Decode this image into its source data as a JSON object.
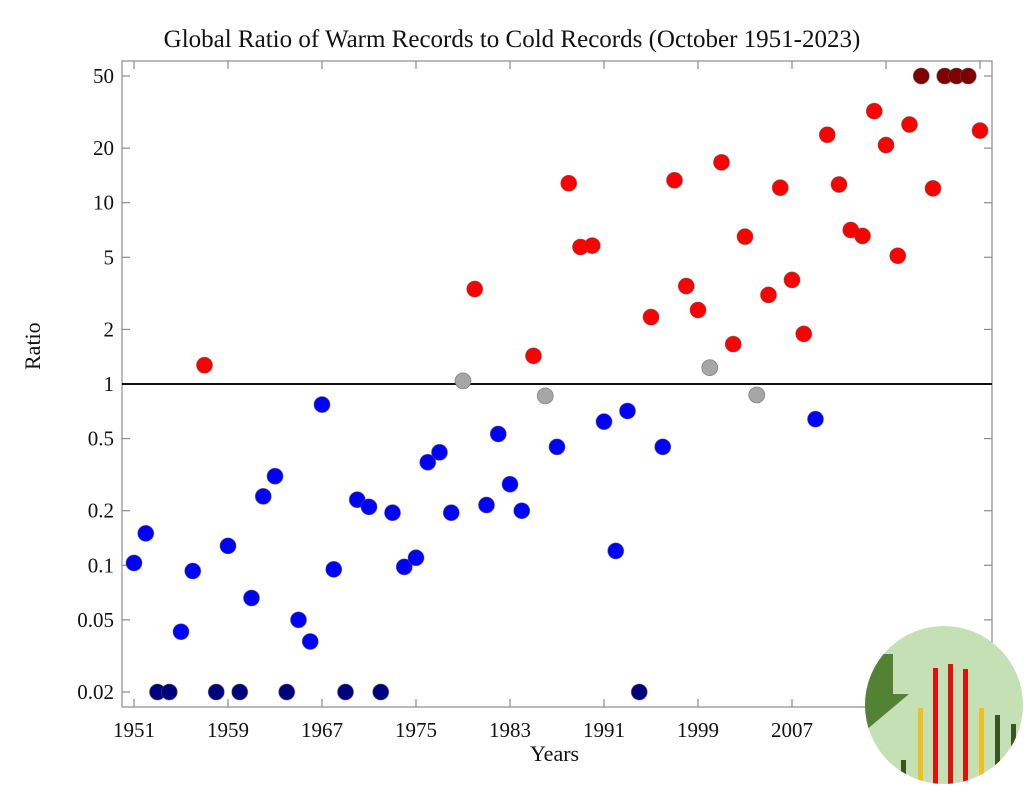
{
  "chart_data": {
    "type": "scatter",
    "title": "Global Ratio of Warm Records to Cold Records (October 1951-2023)",
    "xlabel": "Years",
    "ylabel": "Ratio",
    "yscale": "log",
    "xlim": [
      1950.0,
      2024.0
    ],
    "ylim": [
      0.0175,
      62
    ],
    "xticks": [
      1951,
      1959,
      1967,
      1975,
      1983,
      1991,
      1999,
      2007,
      2015,
      2023
    ],
    "xtick_labels": [
      "1951",
      "1959",
      "1967",
      "1975",
      "1983",
      "1991",
      "1999",
      "2007",
      "",
      ""
    ],
    "yticks": [
      0.02,
      0.05,
      0.1,
      0.2,
      0.5,
      1,
      2,
      5,
      10,
      20,
      50
    ],
    "ytick_labels": [
      "0.02",
      "0.05",
      "0.1",
      "0.2",
      "0.5",
      "1",
      "2",
      "5",
      "10",
      "20",
      "50"
    ],
    "reference_line": 1,
    "grid": false,
    "colors": {
      "warm": "#ff0000",
      "cold": "#0000ff",
      "neutral": "#a6a6a6",
      "cold_clipped": "#00007f",
      "warm_clipped": "#7f0000"
    },
    "points": [
      {
        "year": 1951,
        "ratio": 0.103,
        "cat": "cold"
      },
      {
        "year": 1952,
        "ratio": 0.15,
        "cat": "cold"
      },
      {
        "year": 1953,
        "ratio": 0.02,
        "cat": "cold_clipped"
      },
      {
        "year": 1954,
        "ratio": 0.02,
        "cat": "cold_clipped"
      },
      {
        "year": 1955,
        "ratio": 0.043,
        "cat": "cold"
      },
      {
        "year": 1956,
        "ratio": 0.093,
        "cat": "cold"
      },
      {
        "year": 1957,
        "ratio": 1.27,
        "cat": "warm"
      },
      {
        "year": 1958,
        "ratio": 0.02,
        "cat": "cold_clipped"
      },
      {
        "year": 1959,
        "ratio": 0.128,
        "cat": "cold"
      },
      {
        "year": 1960,
        "ratio": 0.02,
        "cat": "cold_clipped"
      },
      {
        "year": 1961,
        "ratio": 0.066,
        "cat": "cold"
      },
      {
        "year": 1962,
        "ratio": 0.24,
        "cat": "cold"
      },
      {
        "year": 1963,
        "ratio": 0.31,
        "cat": "cold"
      },
      {
        "year": 1964,
        "ratio": 0.02,
        "cat": "cold_clipped"
      },
      {
        "year": 1965,
        "ratio": 0.05,
        "cat": "cold"
      },
      {
        "year": 1966,
        "ratio": 0.038,
        "cat": "cold"
      },
      {
        "year": 1967,
        "ratio": 0.77,
        "cat": "cold"
      },
      {
        "year": 1968,
        "ratio": 0.095,
        "cat": "cold"
      },
      {
        "year": 1969,
        "ratio": 0.02,
        "cat": "cold_clipped"
      },
      {
        "year": 1970,
        "ratio": 0.23,
        "cat": "cold"
      },
      {
        "year": 1971,
        "ratio": 0.21,
        "cat": "cold"
      },
      {
        "year": 1972,
        "ratio": 0.02,
        "cat": "cold_clipped"
      },
      {
        "year": 1973,
        "ratio": 0.195,
        "cat": "cold"
      },
      {
        "year": 1974,
        "ratio": 0.098,
        "cat": "cold"
      },
      {
        "year": 1975,
        "ratio": 0.11,
        "cat": "cold"
      },
      {
        "year": 1976,
        "ratio": 0.37,
        "cat": "cold"
      },
      {
        "year": 1977,
        "ratio": 0.42,
        "cat": "cold"
      },
      {
        "year": 1978,
        "ratio": 0.195,
        "cat": "cold"
      },
      {
        "year": 1979,
        "ratio": 1.04,
        "cat": "neutral"
      },
      {
        "year": 1980,
        "ratio": 3.34,
        "cat": "warm"
      },
      {
        "year": 1981,
        "ratio": 0.215,
        "cat": "cold"
      },
      {
        "year": 1982,
        "ratio": 0.53,
        "cat": "cold"
      },
      {
        "year": 1983,
        "ratio": 0.28,
        "cat": "cold"
      },
      {
        "year": 1984,
        "ratio": 0.2,
        "cat": "cold"
      },
      {
        "year": 1985,
        "ratio": 1.43,
        "cat": "warm"
      },
      {
        "year": 1986,
        "ratio": 0.86,
        "cat": "neutral"
      },
      {
        "year": 1987,
        "ratio": 0.45,
        "cat": "cold"
      },
      {
        "year": 1988,
        "ratio": 12.8,
        "cat": "warm"
      },
      {
        "year": 1989,
        "ratio": 5.7,
        "cat": "warm"
      },
      {
        "year": 1990,
        "ratio": 5.8,
        "cat": "warm"
      },
      {
        "year": 1991,
        "ratio": 0.62,
        "cat": "cold"
      },
      {
        "year": 1992,
        "ratio": 0.12,
        "cat": "cold"
      },
      {
        "year": 1993,
        "ratio": 0.71,
        "cat": "cold"
      },
      {
        "year": 1994,
        "ratio": 0.02,
        "cat": "cold_clipped"
      },
      {
        "year": 1995,
        "ratio": 2.34,
        "cat": "warm"
      },
      {
        "year": 1996,
        "ratio": 0.45,
        "cat": "cold"
      },
      {
        "year": 1997,
        "ratio": 13.3,
        "cat": "warm"
      },
      {
        "year": 1998,
        "ratio": 3.47,
        "cat": "warm"
      },
      {
        "year": 1999,
        "ratio": 2.56,
        "cat": "warm"
      },
      {
        "year": 2000,
        "ratio": 1.23,
        "cat": "neutral"
      },
      {
        "year": 2001,
        "ratio": 16.7,
        "cat": "warm"
      },
      {
        "year": 2002,
        "ratio": 1.66,
        "cat": "warm"
      },
      {
        "year": 2003,
        "ratio": 6.5,
        "cat": "warm"
      },
      {
        "year": 2004,
        "ratio": 0.87,
        "cat": "neutral"
      },
      {
        "year": 2005,
        "ratio": 3.1,
        "cat": "warm"
      },
      {
        "year": 2006,
        "ratio": 12.1,
        "cat": "warm"
      },
      {
        "year": 2007,
        "ratio": 3.75,
        "cat": "warm"
      },
      {
        "year": 2008,
        "ratio": 1.89,
        "cat": "warm"
      },
      {
        "year": 2009,
        "ratio": 0.64,
        "cat": "cold"
      },
      {
        "year": 2010,
        "ratio": 23.7,
        "cat": "warm"
      },
      {
        "year": 2011,
        "ratio": 12.6,
        "cat": "warm"
      },
      {
        "year": 2012,
        "ratio": 7.07,
        "cat": "warm"
      },
      {
        "year": 2013,
        "ratio": 6.56,
        "cat": "warm"
      },
      {
        "year": 2014,
        "ratio": 32,
        "cat": "warm"
      },
      {
        "year": 2015,
        "ratio": 20.8,
        "cat": "warm"
      },
      {
        "year": 2016,
        "ratio": 5.1,
        "cat": "warm"
      },
      {
        "year": 2017,
        "ratio": 27,
        "cat": "warm"
      },
      {
        "year": 2018,
        "ratio": 50,
        "cat": "warm_clipped"
      },
      {
        "year": 2019,
        "ratio": 12,
        "cat": "warm"
      },
      {
        "year": 2020,
        "ratio": 50,
        "cat": "warm_clipped"
      },
      {
        "year": 2021,
        "ratio": 50,
        "cat": "warm_clipped"
      },
      {
        "year": 2022,
        "ratio": 50,
        "cat": "warm_clipped"
      },
      {
        "year": 2023,
        "ratio": 25,
        "cat": "warm"
      }
    ]
  },
  "logo": {
    "icon": "bar-chart-logo-icon",
    "colors": {
      "bg": "#c5e0b4",
      "dark": "#548235",
      "darkest": "#375623",
      "yellow": "#f0c020",
      "red": "#e01010"
    }
  }
}
